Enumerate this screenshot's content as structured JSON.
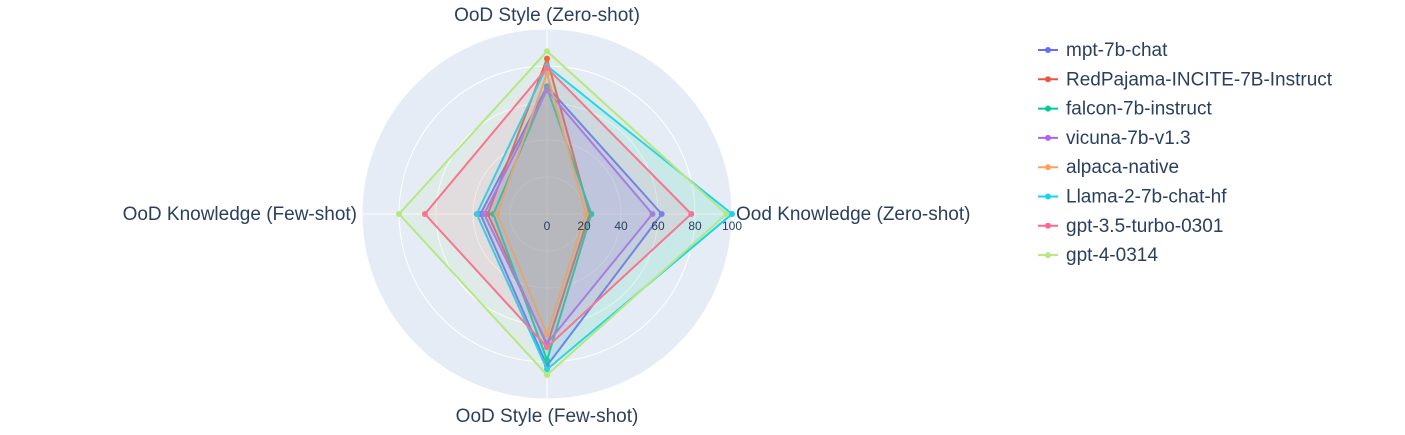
{
  "chart_data": {
    "type": "radar",
    "categories": [
      "Ood Knowledge (Zero-shot)",
      "OoD Style (Zero-shot)",
      "OoD Knowledge (Few-shot)",
      "OoD Style (Few-shot)"
    ],
    "ylim": [
      0,
      100
    ],
    "yticks": [
      0,
      20,
      40,
      60,
      80,
      100
    ],
    "grid": true,
    "series": [
      {
        "name": "mpt-7b-chat",
        "color": "#636efa",
        "values": [
          62,
          69,
          36,
          82
        ]
      },
      {
        "name": "RedPajama-INCITE-7B-Instruct",
        "color": "#EF553B",
        "values": [
          23,
          84,
          32,
          71
        ]
      },
      {
        "name": "falcon-7b-instruct",
        "color": "#00cc96",
        "values": [
          24,
          68,
          29,
          79
        ]
      },
      {
        "name": "vicuna-7b-v1.3",
        "color": "#ab63fa",
        "values": [
          57,
          67,
          34,
          70
        ]
      },
      {
        "name": "alpaca-native",
        "color": "#FFA15A",
        "values": [
          21,
          76,
          27,
          65
        ]
      },
      {
        "name": "Llama-2-7b-chat-hf",
        "color": "#19d3f3",
        "values": [
          100,
          80,
          38,
          84
        ]
      },
      {
        "name": "gpt-3.5-turbo-0301",
        "color": "#FF6692",
        "values": [
          78,
          79,
          66,
          72
        ]
      },
      {
        "name": "gpt-4-0314",
        "color": "#B6E880",
        "values": [
          97,
          88,
          80,
          87
        ]
      }
    ]
  }
}
